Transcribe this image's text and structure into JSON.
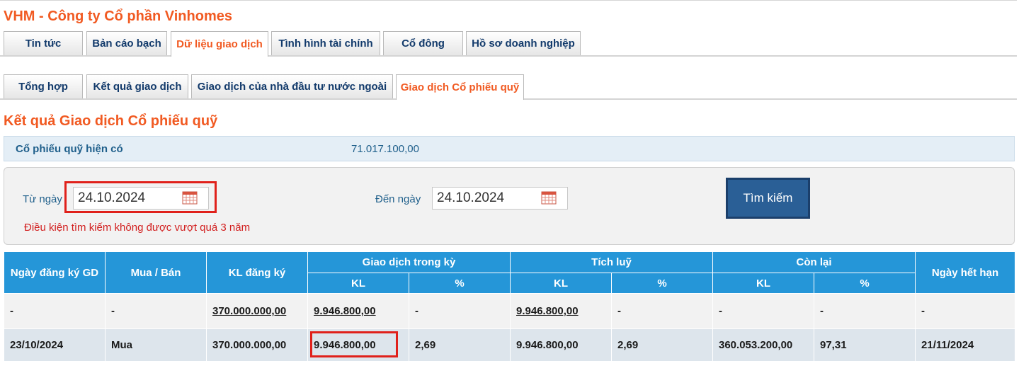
{
  "company": {
    "title": "VHM - Công ty Cổ phần Vinhomes"
  },
  "main_tabs": [
    {
      "label": "Tin tức",
      "active": false
    },
    {
      "label": "Bản cáo bạch",
      "active": false
    },
    {
      "label": "Dữ liệu giao dịch",
      "active": true
    },
    {
      "label": "Tình hình tài chính",
      "active": false
    },
    {
      "label": "Cổ đông",
      "active": false
    },
    {
      "label": "Hồ sơ doanh nghiệp",
      "active": false
    }
  ],
  "sub_tabs": [
    {
      "label": "Tổng hợp",
      "active": false
    },
    {
      "label": "Kết quả giao dịch",
      "active": false
    },
    {
      "label": "Giao dịch của nhà đầu tư nước ngoài",
      "active": false
    },
    {
      "label": "Giao dịch Cổ phiếu quỹ",
      "active": true
    }
  ],
  "section": {
    "title": "Kết quả Giao dịch Cổ phiếu quỹ"
  },
  "treasury": {
    "label": "Cổ phiếu quỹ hiện có",
    "value": "71.017.100,00"
  },
  "search": {
    "from_label": "Từ ngày",
    "from_value": "24.10.2024",
    "to_label": "Đến ngày",
    "to_value": "24.10.2024",
    "button_label": "Tìm kiếm",
    "warning": "Điều kiện tìm kiếm không được vượt quá 3 năm"
  },
  "table": {
    "headers": {
      "reg_date": "Ngày đăng ký GD",
      "buy_sell": "Mua / Bán",
      "reg_volume": "KL đăng ký",
      "period": "Giao dịch trong kỳ",
      "accumulated": "Tích luỹ",
      "remaining": "Còn lại",
      "expiry": "Ngày hết hạn",
      "kl": "KL",
      "pct": "%"
    },
    "summary_row": [
      "-",
      "-",
      "370.000.000,00",
      "9.946.800,00",
      "-",
      "9.946.800,00",
      "-",
      "-",
      "-",
      "-"
    ],
    "rows": [
      [
        "23/10/2024",
        "Mua",
        "370.000.000,00",
        "9.946.800,00",
        "2,69",
        "9.946.800,00",
        "2,69",
        "360.053.200,00",
        "97,31",
        "21/11/2024"
      ]
    ]
  },
  "colors": {
    "accent": "#f15a22",
    "header_blue": "#2596d8",
    "button_blue": "#2a5f96",
    "highlight_red": "#e0211b"
  },
  "icons": {
    "calendar": "calendar-icon"
  }
}
